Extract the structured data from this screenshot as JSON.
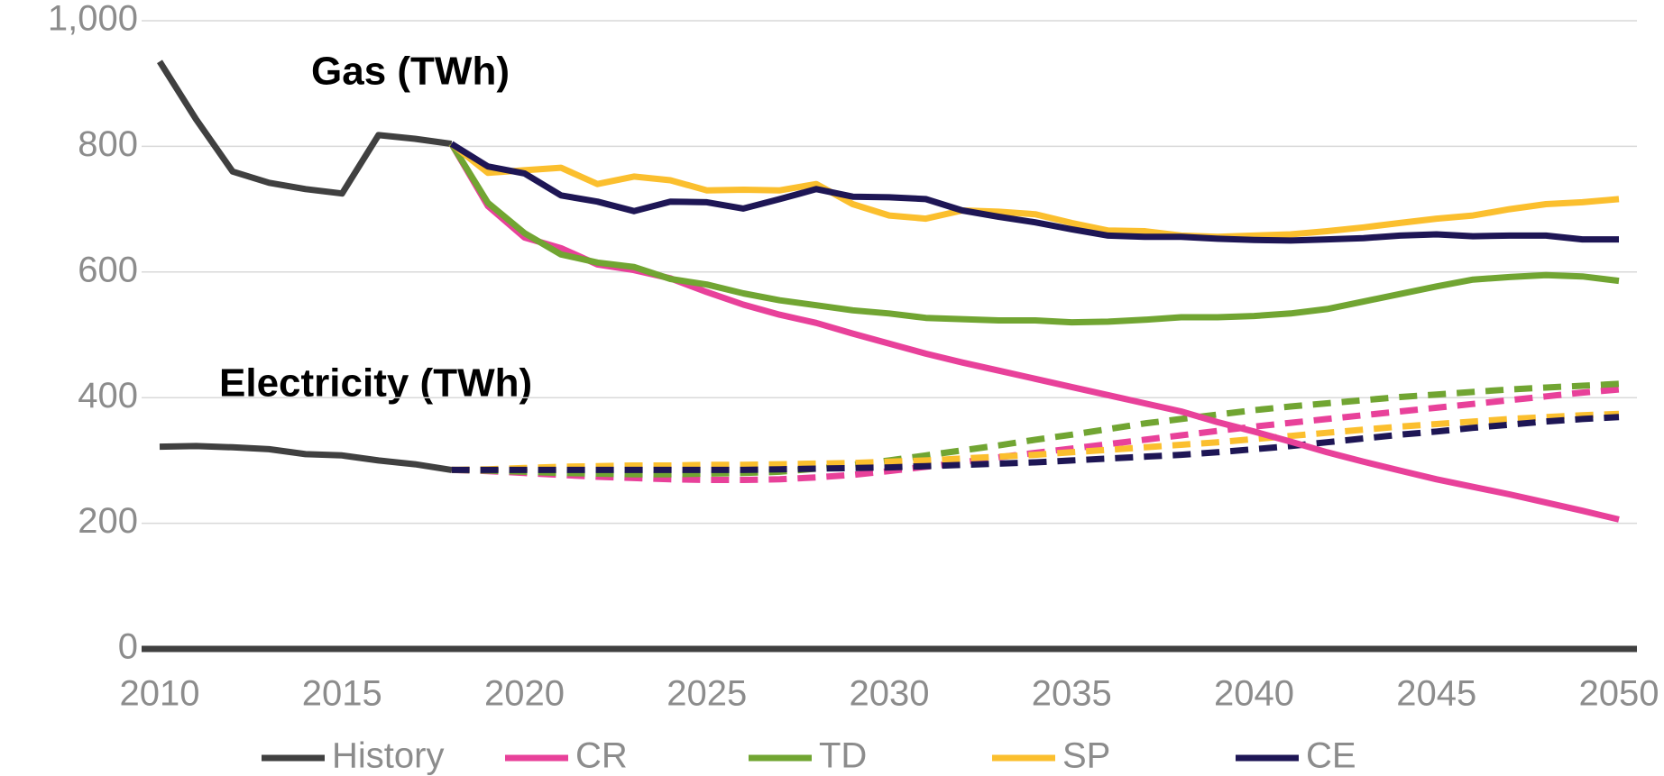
{
  "chart_data": {
    "type": "line",
    "annotations": [
      "Gas (TWh)",
      "Electricity (TWh)"
    ],
    "x": [
      2010,
      2011,
      2012,
      2013,
      2014,
      2015,
      2016,
      2017,
      2018,
      2019,
      2020,
      2021,
      2022,
      2023,
      2024,
      2025,
      2026,
      2027,
      2028,
      2029,
      2030,
      2031,
      2032,
      2033,
      2034,
      2035,
      2036,
      2037,
      2038,
      2039,
      2040,
      2041,
      2042,
      2043,
      2044,
      2045,
      2046,
      2047,
      2048,
      2049,
      2050
    ],
    "series": [
      {
        "name": "History",
        "color": "#404040",
        "electricity_dashed": false,
        "gas": [
          935,
          843,
          760,
          742,
          732,
          725,
          818,
          812,
          804,
          null,
          null,
          null,
          null,
          null,
          null,
          null,
          null,
          null,
          null,
          null,
          null,
          null,
          null,
          null,
          null,
          null,
          null,
          null,
          null,
          null,
          null,
          null,
          null,
          null,
          null,
          null,
          null,
          null,
          null,
          null,
          null
        ],
        "electricity": [
          322,
          323,
          321,
          318,
          310,
          308,
          300,
          294,
          285,
          null,
          null,
          null,
          null,
          null,
          null,
          null,
          null,
          null,
          null,
          null,
          null,
          null,
          null,
          null,
          null,
          null,
          null,
          null,
          null,
          null,
          null,
          null,
          null,
          null,
          null,
          null,
          null,
          null,
          null,
          null,
          null
        ]
      },
      {
        "name": "CR",
        "color": "#e8419a",
        "electricity_dashed": true,
        "gas": [
          null,
          null,
          null,
          null,
          null,
          null,
          null,
          null,
          804,
          705,
          655,
          638,
          612,
          603,
          590,
          568,
          548,
          532,
          519,
          502,
          486,
          470,
          456,
          443,
          430,
          417,
          404,
          391,
          378,
          361,
          346,
          330,
          313,
          298,
          284,
          270,
          258,
          246,
          233,
          220,
          206
        ],
        "electricity": [
          null,
          null,
          null,
          null,
          null,
          null,
          null,
          null,
          285,
          283,
          280,
          277,
          274,
          272,
          270,
          269,
          269,
          270,
          273,
          277,
          283,
          290,
          297,
          305,
          312,
          319,
          326,
          333,
          340,
          347,
          354,
          360,
          366,
          372,
          378,
          384,
          390,
          396,
          402,
          408,
          413
        ]
      },
      {
        "name": "TD",
        "color": "#71a532",
        "electricity_dashed": true,
        "gas": [
          null,
          null,
          null,
          null,
          null,
          null,
          null,
          null,
          804,
          710,
          662,
          628,
          615,
          608,
          589,
          580,
          566,
          555,
          547,
          539,
          534,
          527,
          525,
          523,
          523,
          520,
          521,
          524,
          528,
          528,
          530,
          534,
          541,
          553,
          565,
          577,
          588,
          592,
          595,
          593,
          586
        ],
        "electricity": [
          null,
          null,
          null,
          null,
          null,
          null,
          null,
          null,
          285,
          284,
          282,
          280,
          279,
          278,
          278,
          279,
          280,
          282,
          287,
          293,
          300,
          308,
          316,
          324,
          333,
          341,
          350,
          359,
          366,
          373,
          380,
          386,
          391,
          396,
          401,
          405,
          409,
          413,
          416,
          419,
          422
        ]
      },
      {
        "name": "SP",
        "color": "#fbbf2e",
        "electricity_dashed": true,
        "gas": [
          null,
          null,
          null,
          null,
          null,
          null,
          null,
          null,
          804,
          758,
          762,
          766,
          740,
          752,
          746,
          730,
          731,
          730,
          740,
          708,
          690,
          685,
          698,
          696,
          692,
          678,
          666,
          665,
          658,
          656,
          658,
          660,
          665,
          671,
          678,
          685,
          690,
          700,
          708,
          711,
          716
        ],
        "electricity": [
          null,
          null,
          null,
          null,
          null,
          null,
          null,
          null,
          285,
          286,
          288,
          290,
          291,
          292,
          292,
          293,
          293,
          294,
          295,
          296,
          298,
          300,
          303,
          306,
          309,
          313,
          317,
          321,
          325,
          329,
          334,
          339,
          344,
          349,
          354,
          358,
          362,
          366,
          369,
          372,
          374
        ]
      },
      {
        "name": "CE",
        "color": "#1e1655",
        "electricity_dashed": true,
        "gas": [
          null,
          null,
          null,
          null,
          null,
          null,
          null,
          null,
          804,
          768,
          757,
          722,
          712,
          697,
          712,
          711,
          701,
          716,
          732,
          720,
          719,
          716,
          698,
          688,
          679,
          668,
          658,
          656,
          656,
          653,
          651,
          650,
          652,
          654,
          658,
          660,
          657,
          658,
          658,
          652,
          652
        ],
        "electricity": [
          null,
          null,
          null,
          null,
          null,
          null,
          null,
          null,
          285,
          285,
          285,
          285,
          285,
          285,
          285,
          285,
          285,
          286,
          287,
          288,
          289,
          291,
          293,
          295,
          297,
          300,
          303,
          306,
          309,
          313,
          318,
          323,
          329,
          335,
          341,
          346,
          352,
          357,
          362,
          366,
          369
        ]
      }
    ],
    "xlim": [
      2010,
      2050
    ],
    "xticks": [
      2010,
      2015,
      2020,
      2025,
      2030,
      2035,
      2040,
      2045,
      2050
    ],
    "ylim": [
      0,
      1000
    ],
    "yticks": [
      0,
      200,
      400,
      600,
      800,
      {
        "value": 1000,
        "label": "1,000"
      }
    ],
    "grid": true,
    "legend": "bottom"
  }
}
